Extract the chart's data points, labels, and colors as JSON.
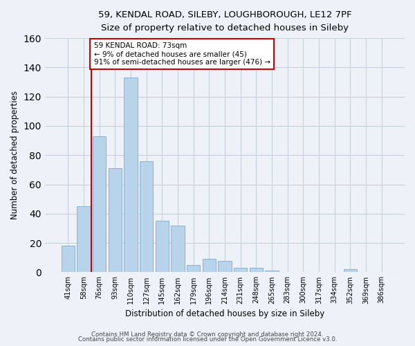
{
  "title_line1": "59, KENDAL ROAD, SILEBY, LOUGHBOROUGH, LE12 7PF",
  "title_line2": "Size of property relative to detached houses in Sileby",
  "xlabel": "Distribution of detached houses by size in Sileby",
  "ylabel": "Number of detached properties",
  "bar_labels": [
    "41sqm",
    "58sqm",
    "76sqm",
    "93sqm",
    "110sqm",
    "127sqm",
    "145sqm",
    "162sqm",
    "179sqm",
    "196sqm",
    "214sqm",
    "231sqm",
    "248sqm",
    "265sqm",
    "283sqm",
    "300sqm",
    "317sqm",
    "334sqm",
    "352sqm",
    "369sqm",
    "386sqm"
  ],
  "bar_values": [
    18,
    45,
    93,
    71,
    133,
    76,
    35,
    32,
    5,
    9,
    8,
    3,
    3,
    1,
    0,
    0,
    0,
    0,
    2,
    0,
    0
  ],
  "bar_color": "#b8d4ea",
  "bar_edge_color": "#7aabcf",
  "vline_x": 1.5,
  "vline_color": "#cc0000",
  "annotation_text": "59 KENDAL ROAD: 73sqm\n← 9% of detached houses are smaller (45)\n91% of semi-detached houses are larger (476) →",
  "ylim": [
    0,
    160
  ],
  "yticks": [
    0,
    20,
    40,
    60,
    80,
    100,
    120,
    140,
    160
  ],
  "background_color": "#eef2f8",
  "grid_color": "#c8d0dc",
  "footer_line1": "Contains HM Land Registry data © Crown copyright and database right 2024.",
  "footer_line2": "Contains public sector information licensed under the Open Government Licence v3.0."
}
